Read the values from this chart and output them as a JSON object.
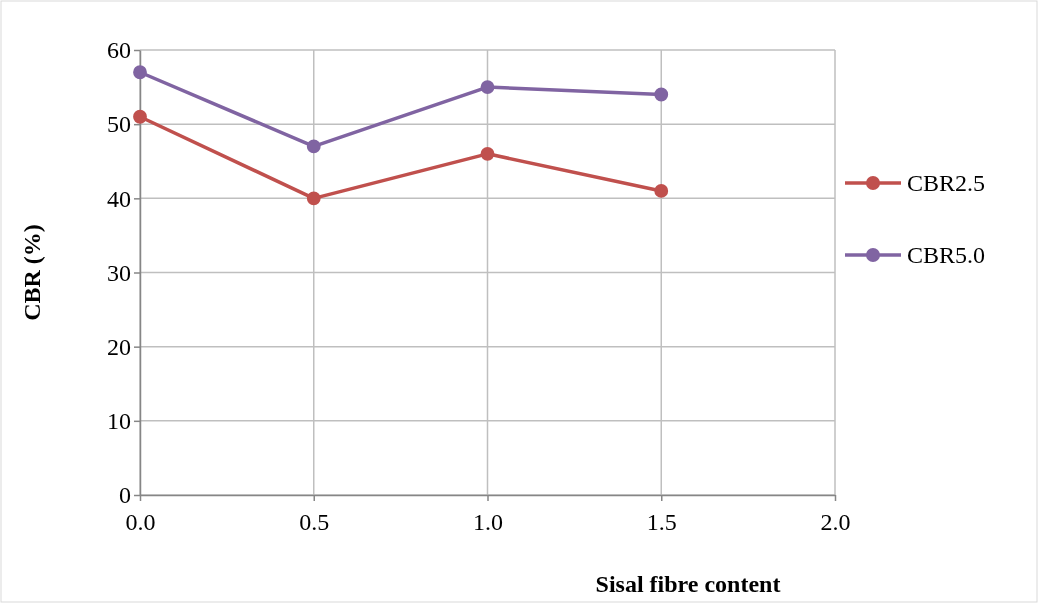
{
  "chart_data": {
    "type": "line",
    "xlabel": "Sisal fibre content",
    "ylabel": "CBR (%)",
    "x": [
      0,
      0.5,
      1,
      1.5
    ],
    "series": [
      {
        "name": "CBR2.5",
        "color": "#c0504d",
        "values": [
          51,
          40,
          46,
          41
        ]
      },
      {
        "name": "CBR5.0",
        "color": "#8064a2",
        "values": [
          57,
          47,
          55,
          54
        ]
      }
    ],
    "xlim": [
      0,
      2
    ],
    "xticks": [
      {
        "value": 0,
        "label": "0.0"
      },
      {
        "value": 0.5,
        "label": "0.5"
      },
      {
        "value": 1,
        "label": "1.0"
      },
      {
        "value": 1.5,
        "label": "1.5"
      },
      {
        "value": 2,
        "label": "2.0"
      }
    ],
    "ylim": [
      0,
      60
    ],
    "yticks": [
      0,
      10,
      20,
      30,
      40,
      50,
      60
    ],
    "grid": true,
    "legend": "right",
    "marker": "circle",
    "line_style": "solid"
  }
}
